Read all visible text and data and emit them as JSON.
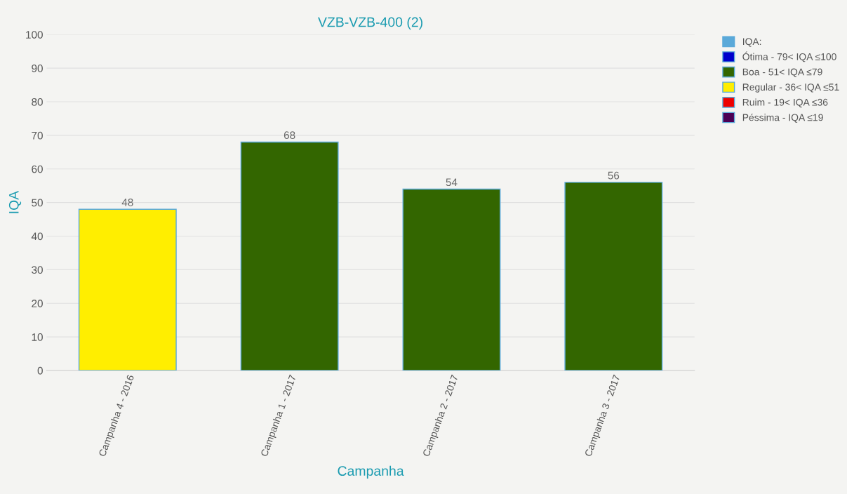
{
  "chart_data": {
    "type": "bar",
    "title": "VZB-VZB-400 (2)",
    "xlabel": "Campanha",
    "ylabel": "IQA",
    "categories": [
      "Campanha 4 - 2016",
      "Campanha 1 - 2017",
      "Campanha 2 - 2017",
      "Campanha 3 - 2017"
    ],
    "stacked": true,
    "series": [
      {
        "name": "IQA:",
        "color": "#5aa9d9",
        "values": [
          null,
          null,
          null,
          null
        ]
      },
      {
        "name": "Ótima - 79< IQA ≤100",
        "color": "#0000cc",
        "values": [
          null,
          null,
          null,
          null
        ]
      },
      {
        "name": "Boa - 51< IQA ≤79",
        "color": "#336600",
        "values": [
          null,
          68,
          54,
          56
        ]
      },
      {
        "name": "Regular - 36< IQA ≤51",
        "color": "#ffee00",
        "values": [
          48,
          null,
          null,
          null
        ]
      },
      {
        "name": "Ruim - 19< IQA ≤36",
        "color": "#ee0000",
        "values": [
          null,
          null,
          null,
          null
        ]
      },
      {
        "name": "Péssima - IQA ≤19",
        "color": "#4b0055",
        "values": [
          null,
          null,
          null,
          null
        ]
      }
    ],
    "ylim": [
      0,
      100
    ],
    "yticks": [
      0,
      10,
      20,
      30,
      40,
      50,
      60,
      70,
      80,
      90,
      100
    ],
    "grid": "y",
    "legend": "top right",
    "data_labels": true
  }
}
